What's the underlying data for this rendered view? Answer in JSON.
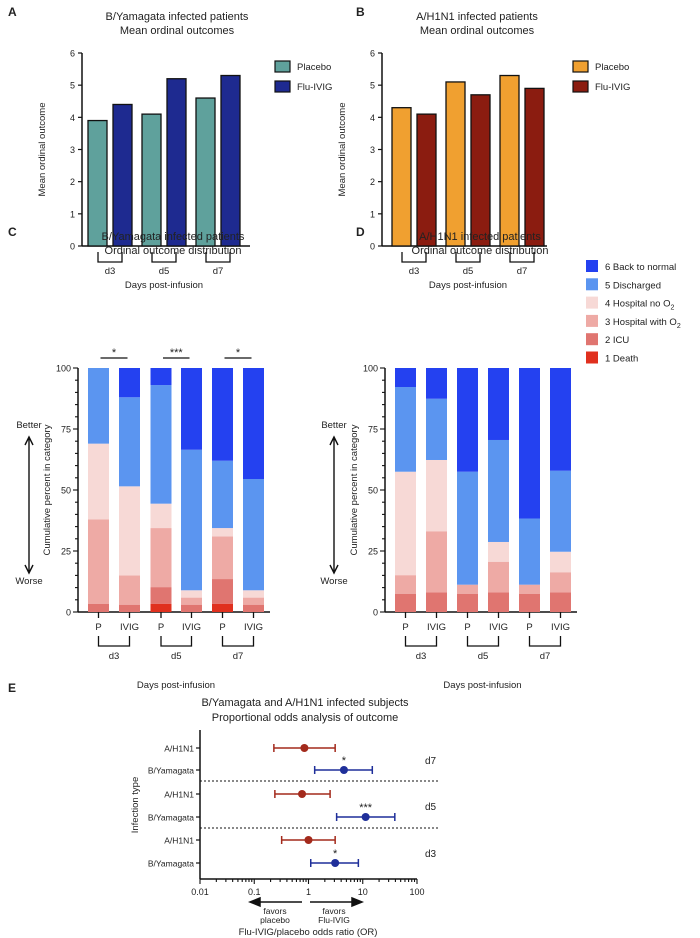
{
  "panel_letters": [
    "A",
    "B",
    "C",
    "D",
    "E"
  ],
  "colors": {
    "A": {
      "Placebo": "#5fa19c",
      "Flu-IVIG": "#1e2a90"
    },
    "B": {
      "Placebo": "#f0a030",
      "Flu-IVIG": "#8b1c10"
    },
    "categories": {
      "6 Back to normal": "#2441f0",
      "5 Discharged": "#5b95f0",
      "4 Hospital no O2": "#f7d9d6",
      "3 Hospital with O2": "#eeaaa5",
      "2 ICU": "#e07570",
      "1 Death": "#e0301e"
    },
    "E": {
      "A/H1N1": "#a32a1c",
      "B/Yamagata": "#1f2f9a"
    }
  },
  "chart_data": [
    {
      "type": "bar",
      "title": [
        "B/Yamagata infected patients",
        "Mean ordinal outcomes"
      ],
      "xlabel": "Days post-infusion",
      "ylabel": "Mean ordinal outcome",
      "ylim": [
        0,
        6
      ],
      "yticks": [
        "0",
        "1",
        "2",
        "3",
        "4",
        "5",
        "6"
      ],
      "categories": [
        "d3",
        "d5",
        "d7"
      ],
      "legend": "right",
      "series": [
        {
          "name": "Placebo",
          "values": [
            3.9,
            4.1,
            4.6
          ]
        },
        {
          "name": "Flu-IVIG",
          "values": [
            4.4,
            5.2,
            5.3
          ]
        }
      ]
    },
    {
      "type": "bar",
      "title": [
        "A/H1N1 infected patients",
        "Mean ordinal outcomes"
      ],
      "xlabel": "Days post-infusion",
      "ylabel": "Mean ordinal outcome",
      "ylim": [
        0,
        6
      ],
      "yticks": [
        "0",
        "1",
        "2",
        "3",
        "4",
        "5",
        "6"
      ],
      "categories": [
        "d3",
        "d5",
        "d7"
      ],
      "legend": "right",
      "series": [
        {
          "name": "Placebo",
          "values": [
            4.3,
            5.1,
            5.3
          ]
        },
        {
          "name": "Flu-IVIG",
          "values": [
            4.1,
            4.7,
            4.9
          ]
        }
      ]
    },
    {
      "type": "bar",
      "stacked": true,
      "title": [
        "B/Yamagata infected patients",
        "Ordinal outcome distribution"
      ],
      "xlabel": "Days post-infusion",
      "ylabel": "Cumulative percent in category",
      "ylim": [
        0,
        100
      ],
      "yticks": [
        "0",
        "25",
        "50",
        "75",
        "100"
      ],
      "better_label": "Better",
      "worse_label": "Worse",
      "bar_labels": [
        "P",
        "IVIG",
        "P",
        "IVIG",
        "P",
        "IVIG"
      ],
      "categories": [
        "d3",
        "d5",
        "d7"
      ],
      "significance": [
        "*",
        "***",
        "*"
      ],
      "stack_order": [
        "1 Death",
        "2 ICU",
        "3 Hospital with O2",
        "4 Hospital no O2",
        "5 Discharged",
        "6 Back to normal"
      ],
      "percents": [
        [
          0,
          3.4,
          34.6,
          31.0,
          31.0,
          0
        ],
        [
          0,
          3.0,
          12.0,
          36.5,
          36.5,
          12.0
        ],
        [
          3.4,
          6.8,
          24.2,
          10.0,
          48.6,
          7.0
        ],
        [
          0,
          3.0,
          2.9,
          3.0,
          57.6,
          33.5
        ],
        [
          3.4,
          10.1,
          17.5,
          3.4,
          27.6,
          38.0
        ],
        [
          0,
          3.0,
          2.9,
          3.0,
          45.6,
          45.5
        ]
      ]
    },
    {
      "type": "bar",
      "stacked": true,
      "title": [
        "A/H1N1 infected patients",
        "Ordinal outcome distribution"
      ],
      "xlabel": "Days post-infusion",
      "ylabel": "Cumulative percent in category",
      "ylim": [
        0,
        100
      ],
      "yticks": [
        "0",
        "25",
        "50",
        "75",
        "100"
      ],
      "better_label": "Better",
      "worse_label": "Worse",
      "bar_labels": [
        "P",
        "IVIG",
        "P",
        "IVIG",
        "P",
        "IVIG"
      ],
      "categories": [
        "d3",
        "d5",
        "d7"
      ],
      "legend": "right",
      "legend_entries": [
        {
          "label": "6 Back to normal",
          "main": "6 Back to normal",
          "sub": ""
        },
        {
          "label": "5 Discharged",
          "main": "5 Discharged",
          "sub": ""
        },
        {
          "label": "4 Hospital no O2",
          "main": "4 Hospital no O",
          "sub": "2"
        },
        {
          "label": "3 Hospital with O2",
          "main": "3 Hospital with O",
          "sub": "2"
        },
        {
          "label": "2 ICU",
          "main": "2 ICU",
          "sub": ""
        },
        {
          "label": "1 Death",
          "main": "1 Death",
          "sub": ""
        }
      ],
      "stack_order": [
        "1 Death",
        "2 ICU",
        "3 Hospital with O2",
        "4 Hospital no O2",
        "5 Discharged",
        "6 Back to normal"
      ],
      "percents": [
        [
          0,
          7.5,
          7.6,
          42.4,
          34.7,
          7.8
        ],
        [
          0,
          8.1,
          25.0,
          29.2,
          25.1,
          12.6
        ],
        [
          0,
          7.5,
          3.7,
          0,
          46.3,
          42.5
        ],
        [
          0,
          8.1,
          12.5,
          8.1,
          41.8,
          29.5
        ],
        [
          0,
          7.5,
          3.7,
          0,
          27.1,
          61.7
        ],
        [
          0,
          8.1,
          8.2,
          8.4,
          33.2,
          42.1
        ]
      ]
    },
    {
      "type": "scatter",
      "subtype": "forest",
      "title": [
        "B/Yamagata and A/H1N1 infected subjects",
        "Proportional odds analysis of outcome"
      ],
      "xlabel": "Flu-IVIG/placebo odds ratio (OR)",
      "ylabel": "Infection type",
      "xscale": "log",
      "xlim": [
        0.01,
        100
      ],
      "xticks": [
        "0.01",
        "0.1",
        "1",
        "10",
        "100"
      ],
      "favors_placebo": [
        "favors",
        "placebo"
      ],
      "favors_ivig": [
        "favors",
        "Flu-IVIG"
      ],
      "groups": [
        {
          "day": "d7",
          "rows": [
            {
              "label": "A/H1N1",
              "or": 0.84,
              "ci": [
                0.23,
                3.1
              ],
              "sig": ""
            },
            {
              "label": "B/Yamagata",
              "or": 4.5,
              "ci": [
                1.3,
                15
              ],
              "sig": "*"
            }
          ]
        },
        {
          "day": "d5",
          "rows": [
            {
              "label": "A/H1N1",
              "or": 0.76,
              "ci": [
                0.24,
                2.5
              ],
              "sig": ""
            },
            {
              "label": "B/Yamagata",
              "or": 11.3,
              "ci": [
                3.3,
                39
              ],
              "sig": "***"
            }
          ]
        },
        {
          "day": "d3",
          "rows": [
            {
              "label": "A/H1N1",
              "or": 1.0,
              "ci": [
                0.32,
                3.1
              ],
              "sig": ""
            },
            {
              "label": "B/Yamagata",
              "or": 3.1,
              "ci": [
                1.1,
                8.3
              ],
              "sig": "*"
            }
          ]
        }
      ]
    }
  ]
}
